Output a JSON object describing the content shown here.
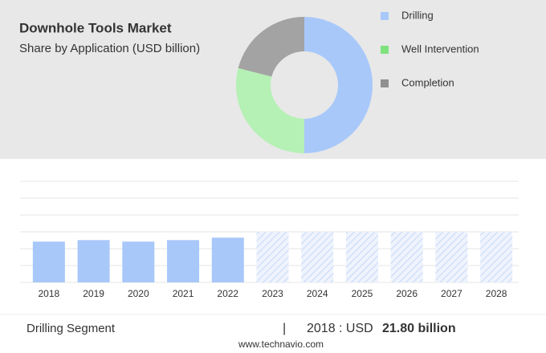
{
  "chart_data": [
    {
      "type": "donut",
      "title": "Downhole Tools Market",
      "subtitle": "Share by Application (USD billion)",
      "categories": [
        "Drilling",
        "Well Intervention",
        "Completion"
      ],
      "values": [
        50,
        29,
        21
      ],
      "colors": [
        "#a8c8fa",
        "#b5f0b5",
        "#a3a3a3"
      ],
      "legend_colors": [
        "#a8c8fa",
        "#7ee27e",
        "#909090"
      ]
    },
    {
      "type": "bar",
      "categories": [
        "2018",
        "2019",
        "2020",
        "2021",
        "2022",
        "2023",
        "2024",
        "2025",
        "2026",
        "2027",
        "2028"
      ],
      "values": [
        21.8,
        22.6,
        21.8,
        22.6,
        23.9,
        null,
        null,
        null,
        null,
        null,
        null
      ],
      "forecast_values": [
        null,
        null,
        null,
        null,
        null,
        27,
        27,
        27,
        27,
        27,
        27
      ],
      "color": "#a8c8fa",
      "ylim": [
        0,
        54
      ],
      "yticks": [
        0,
        9,
        18,
        27,
        36,
        45,
        54
      ],
      "grid": true
    }
  ],
  "footer": {
    "segment": "Drilling Segment",
    "separator": "|",
    "label": "2018 : USD",
    "value": "21.80 billion",
    "source": "www.technavio.com"
  }
}
